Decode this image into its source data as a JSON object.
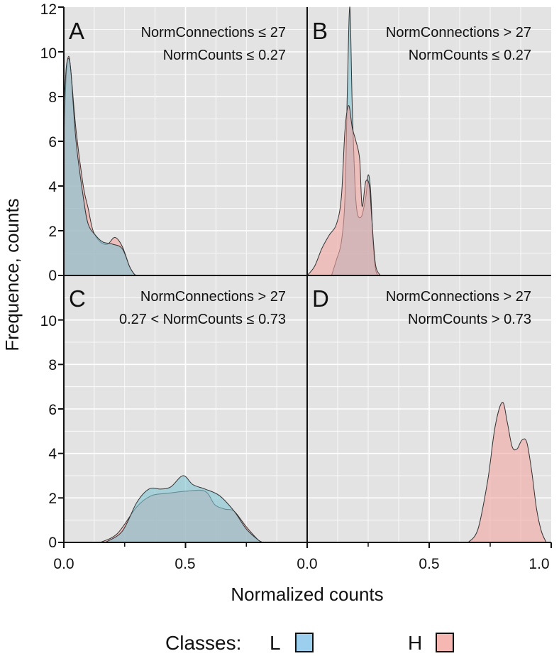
{
  "chart_data": {
    "type": "area",
    "title": "",
    "xlabel": "Normalized counts",
    "ylabel": "Frequence, counts",
    "xlim": [
      0.0,
      1.0
    ],
    "ylim": [
      0,
      12
    ],
    "y_ticks": [
      "0",
      "2",
      "4",
      "6",
      "8",
      "10",
      "12"
    ],
    "x_ticks": [
      "0.0",
      "0.5",
      "0.0",
      "0.5",
      "1.0"
    ],
    "legend": {
      "title": "Classes:",
      "position": "bottom",
      "items": [
        {
          "label": "L",
          "color": "#7fc3d2",
          "swatch_color": "#9ccfee"
        },
        {
          "label": "H",
          "color": "#f2a5a2",
          "swatch_color": "#f6b7b3"
        }
      ]
    },
    "panels": [
      {
        "id": "A",
        "letter": "A",
        "cond_line1": "NormConnections ≤ 27",
        "cond_line2": "NormCounts ≤ 0.27",
        "series": [
          {
            "name": "H",
            "x": [
              0.0,
              0.01,
              0.02,
              0.03,
              0.05,
              0.08,
              0.1,
              0.12,
              0.15,
              0.18,
              0.21,
              0.24,
              0.27,
              0.29,
              0.3
            ],
            "y": [
              6.2,
              9.0,
              9.8,
              9.0,
              6.5,
              4.0,
              3.0,
              2.0,
              1.5,
              1.4,
              1.7,
              1.3,
              0.4,
              0.05,
              0.0
            ]
          },
          {
            "name": "L",
            "x": [
              0.0,
              0.01,
              0.02,
              0.03,
              0.05,
              0.08,
              0.1,
              0.13,
              0.16,
              0.2,
              0.24,
              0.27,
              0.29,
              0.3
            ],
            "y": [
              7.5,
              9.3,
              9.7,
              9.0,
              6.0,
              3.5,
              2.3,
              1.8,
              1.5,
              1.4,
              1.2,
              0.4,
              0.05,
              0.0
            ]
          }
        ]
      },
      {
        "id": "B",
        "letter": "B",
        "cond_line1": "NormConnections > 27",
        "cond_line2": "NormCounts ≤ 0.27",
        "series": [
          {
            "name": "L",
            "x": [
              0.1,
              0.12,
              0.14,
              0.155,
              0.165,
              0.175,
              0.185,
              0.2,
              0.22,
              0.24,
              0.25,
              0.26,
              0.27,
              0.28,
              0.29
            ],
            "y": [
              0.0,
              0.7,
              1.5,
              3.5,
              8.5,
              12.0,
              7.5,
              3.3,
              2.6,
              3.5,
              4.5,
              3.8,
              1.5,
              0.3,
              0.0
            ]
          },
          {
            "name": "H",
            "x": [
              0.0,
              0.03,
              0.06,
              0.09,
              0.12,
              0.14,
              0.155,
              0.17,
              0.185,
              0.2,
              0.215,
              0.225,
              0.24,
              0.255,
              0.265,
              0.28,
              0.3
            ],
            "y": [
              0.0,
              0.4,
              1.2,
              1.8,
              2.3,
              3.5,
              6.5,
              7.6,
              6.6,
              6.0,
              5.2,
              3.1,
              4.2,
              4.0,
              2.5,
              0.5,
              0.0
            ]
          }
        ]
      },
      {
        "id": "C",
        "letter": "C",
        "cond_line1": "NormConnections > 27",
        "cond_line2": "0.27 < NormCounts ≤ 0.73",
        "series": [
          {
            "name": "H",
            "x": [
              0.15,
              0.22,
              0.3,
              0.36,
              0.42,
              0.5,
              0.58,
              0.62,
              0.66,
              0.7,
              0.75,
              0.8,
              0.82
            ],
            "y": [
              0.0,
              0.4,
              1.6,
              2.1,
              2.2,
              2.3,
              2.3,
              1.7,
              1.5,
              1.4,
              0.7,
              0.1,
              0.0
            ]
          },
          {
            "name": "L",
            "x": [
              0.17,
              0.24,
              0.3,
              0.35,
              0.4,
              0.44,
              0.49,
              0.53,
              0.58,
              0.64,
              0.7,
              0.75,
              0.8,
              0.82
            ],
            "y": [
              0.0,
              0.5,
              1.8,
              2.4,
              2.4,
              2.5,
              3.0,
              2.6,
              2.4,
              2.1,
              1.4,
              0.6,
              0.1,
              0.0
            ]
          }
        ]
      },
      {
        "id": "D",
        "letter": "D",
        "cond_line1": "NormConnections > 27",
        "cond_line2": "NormCounts > 0.73",
        "series": [
          {
            "name": "H",
            "x": [
              0.66,
              0.7,
              0.74,
              0.77,
              0.8,
              0.82,
              0.84,
              0.86,
              0.88,
              0.9,
              0.92,
              0.94,
              0.96,
              0.98
            ],
            "y": [
              0.0,
              0.6,
              2.8,
              5.2,
              6.3,
              5.4,
              4.3,
              4.2,
              4.6,
              4.5,
              3.2,
              1.5,
              0.5,
              0.0
            ]
          }
        ]
      }
    ]
  }
}
